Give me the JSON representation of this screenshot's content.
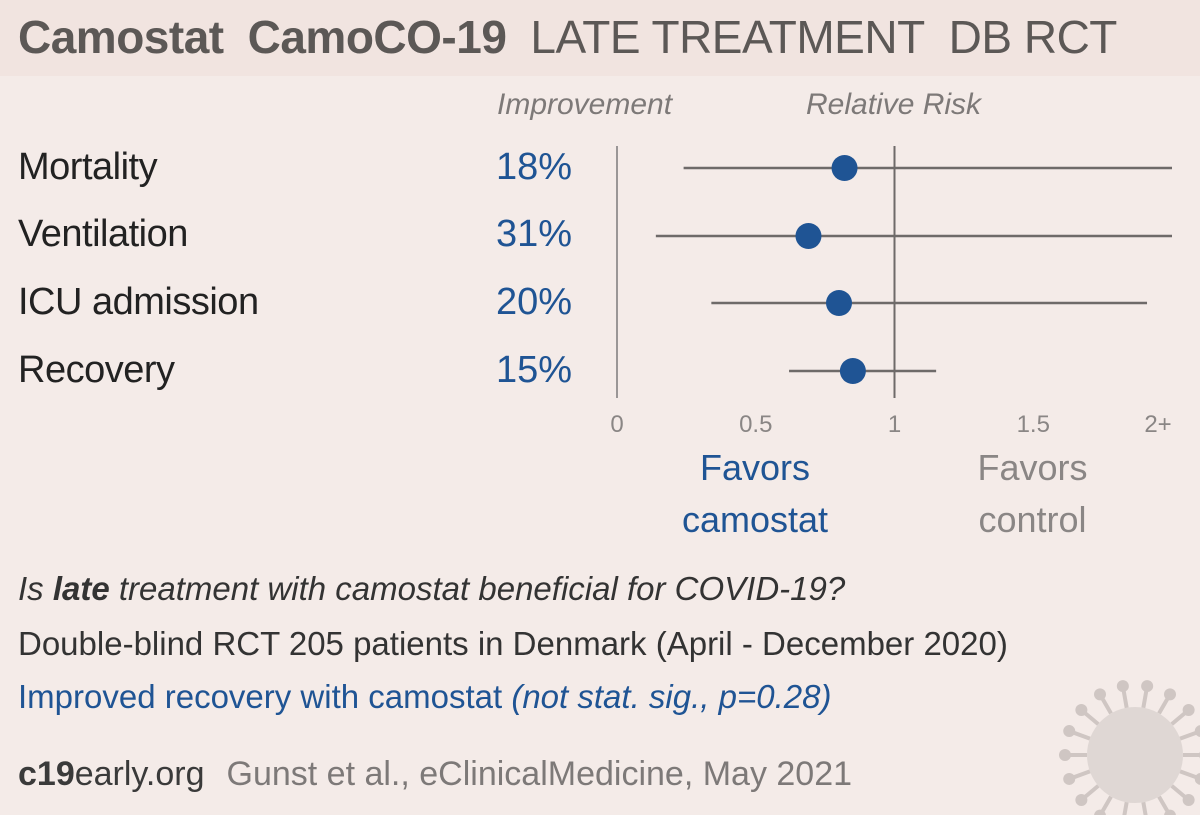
{
  "title": {
    "drug": "Camostat",
    "trial": "CamoCO-19",
    "stage": "LATE TREATMENT",
    "design": "DB RCT"
  },
  "headers": {
    "improvement": "Improvement",
    "relative_risk": "Relative Risk"
  },
  "favors": {
    "treatment": [
      "Favors",
      "camostat"
    ],
    "control": [
      "Favors",
      "control"
    ]
  },
  "chart_data": {
    "type": "forest",
    "xlim": [
      0,
      2
    ],
    "ticks": [
      "0",
      "0.5",
      "1",
      "1.5",
      "2+"
    ],
    "tick_values": [
      0,
      0.5,
      1,
      1.5,
      2
    ],
    "reference": 1,
    "rows": [
      {
        "label": "Mortality",
        "improvement": "18%",
        "rr": 0.82,
        "ci": [
          0.24,
          2.0
        ]
      },
      {
        "label": "Ventilation",
        "improvement": "31%",
        "rr": 0.69,
        "ci": [
          0.14,
          2.0
        ]
      },
      {
        "label": "ICU admission",
        "improvement": "20%",
        "rr": 0.8,
        "ci": [
          0.34,
          1.91
        ]
      },
      {
        "label": "Recovery",
        "improvement": "15%",
        "rr": 0.85,
        "ci": [
          0.62,
          1.15
        ]
      }
    ],
    "colors": {
      "point": "#1f5494",
      "line": "#6e6a69",
      "axis": "#9a9696"
    }
  },
  "summary": {
    "question_pre": "Is ",
    "question_bold": "late",
    "question_post": " treatment with camostat beneficial for COVID-19?",
    "description": "Double-blind RCT 205 patients in Denmark (April - December 2020)",
    "result_main": "Improved recovery with camostat ",
    "result_note": "(not stat. sig., p=0.28)"
  },
  "footer": {
    "site_bold": "c19",
    "site_rest": "early.org",
    "citation": "Gunst et al., eClinicalMedicine, May 2021"
  }
}
